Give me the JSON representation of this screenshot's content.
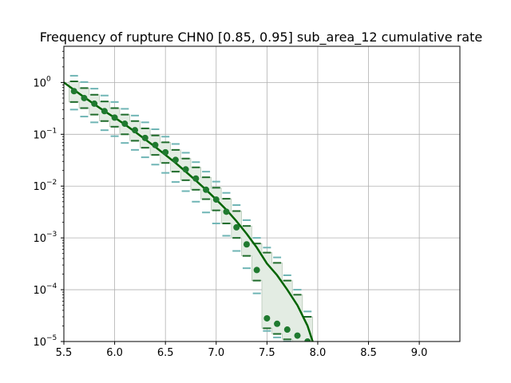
{
  "chart_data": {
    "type": "line",
    "title": "Frequency of rupture CHN0 [0.85, 0.95] sub_area_12 cumulative rate",
    "xlabel": "",
    "ylabel": "",
    "xlim": [
      5.5,
      9.4
    ],
    "ylim": [
      1e-05,
      5
    ],
    "yscale": "log",
    "grid": true,
    "x_ticks": [
      "5.5",
      "6.0",
      "6.5",
      "7.0",
      "7.5",
      "8.0",
      "8.5",
      "9.0"
    ],
    "y_ticks": [
      {
        "mantissa": "10",
        "exp": "0",
        "value": 1
      },
      {
        "mantissa": "10",
        "exp": "−1",
        "value": 0.1
      },
      {
        "mantissa": "10",
        "exp": "−2",
        "value": 0.01
      },
      {
        "mantissa": "10",
        "exp": "−3",
        "value": 0.001
      },
      {
        "mantissa": "10",
        "exp": "−4",
        "value": 0.0001
      },
      {
        "mantissa": "10",
        "exp": "−5",
        "value": 1e-05
      }
    ],
    "colors": {
      "mean_line": "#006400",
      "points": "#1f7a2f",
      "band_fill": "#e3ece3",
      "band_edge": "#a8bca8",
      "outer_markers": "#6fb5b5",
      "inner_markers": "#1e6b2a"
    },
    "mean_curve": {
      "x": [
        5.5,
        5.6,
        5.7,
        5.8,
        5.9,
        6.0,
        6.1,
        6.2,
        6.3,
        6.4,
        6.5,
        6.6,
        6.7,
        6.8,
        6.9,
        7.0,
        7.1,
        7.2,
        7.3,
        7.4,
        7.5,
        7.6,
        7.7,
        7.8,
        7.9,
        7.95
      ],
      "y": [
        1.0,
        0.72,
        0.52,
        0.38,
        0.28,
        0.21,
        0.155,
        0.112,
        0.08,
        0.057,
        0.04,
        0.028,
        0.019,
        0.0128,
        0.0085,
        0.0055,
        0.0035,
        0.0021,
        0.0012,
        0.00065,
        0.00032,
        0.00019,
        0.0001,
        5e-05,
        2e-05,
        1e-05
      ]
    },
    "points": {
      "x": [
        5.6,
        5.7,
        5.8,
        5.9,
        6.0,
        6.1,
        6.2,
        6.3,
        6.4,
        6.5,
        6.6,
        6.7,
        6.8,
        6.9,
        7.0,
        7.1,
        7.2,
        7.3,
        7.4,
        7.5,
        7.6,
        7.7,
        7.8,
        7.9
      ],
      "y": [
        0.68,
        0.5,
        0.39,
        0.28,
        0.21,
        0.16,
        0.12,
        0.085,
        0.062,
        0.045,
        0.032,
        0.021,
        0.014,
        0.0085,
        0.0055,
        0.0032,
        0.0016,
        0.00075,
        0.00024,
        2.8e-05,
        2.2e-05,
        1.7e-05,
        1.3e-05,
        1e-05
      ]
    },
    "band": {
      "x": [
        5.6,
        5.7,
        5.8,
        5.9,
        6.0,
        6.1,
        6.2,
        6.3,
        6.4,
        6.5,
        6.6,
        6.7,
        6.8,
        6.9,
        7.0,
        7.1,
        7.2,
        7.3,
        7.4,
        7.5,
        7.6,
        7.7,
        7.8,
        7.9
      ],
      "low": [
        0.42,
        0.32,
        0.24,
        0.18,
        0.14,
        0.1,
        0.075,
        0.055,
        0.04,
        0.028,
        0.019,
        0.013,
        0.0085,
        0.0056,
        0.0034,
        0.0019,
        0.001,
        0.00045,
        0.00015,
        1.8e-05,
        1.4e-05,
        1.1e-05,
        9e-06,
        8e-06
      ],
      "high": [
        1.05,
        0.78,
        0.58,
        0.43,
        0.32,
        0.24,
        0.18,
        0.13,
        0.095,
        0.07,
        0.05,
        0.034,
        0.023,
        0.0148,
        0.0093,
        0.0057,
        0.0033,
        0.0017,
        0.00078,
        0.00052,
        0.00033,
        0.00015,
        8e-05,
        3e-05
      ]
    },
    "outer_markers": {
      "x": [
        5.6,
        5.7,
        5.8,
        5.9,
        6.0,
        6.1,
        6.2,
        6.3,
        6.4,
        6.5,
        6.6,
        6.7,
        6.8,
        6.9,
        7.0,
        7.1,
        7.2,
        7.3,
        7.4,
        7.5,
        7.6,
        7.7,
        7.8,
        7.9
      ],
      "low": [
        0.3,
        0.22,
        0.17,
        0.12,
        0.092,
        0.068,
        0.05,
        0.036,
        0.026,
        0.018,
        0.012,
        0.008,
        0.005,
        0.0031,
        0.0019,
        0.0011,
        0.00056,
        0.00026,
        8.5e-05,
        1.6e-05,
        1.2e-05,
        1e-05,
        8e-06,
        7e-06
      ],
      "high": [
        1.35,
        1.02,
        0.76,
        0.56,
        0.42,
        0.31,
        0.23,
        0.17,
        0.125,
        0.09,
        0.065,
        0.044,
        0.029,
        0.019,
        0.0122,
        0.0074,
        0.0043,
        0.0022,
        0.001,
        0.00065,
        0.00042,
        0.00019,
        0.0001,
        3.8e-05
      ]
    }
  }
}
